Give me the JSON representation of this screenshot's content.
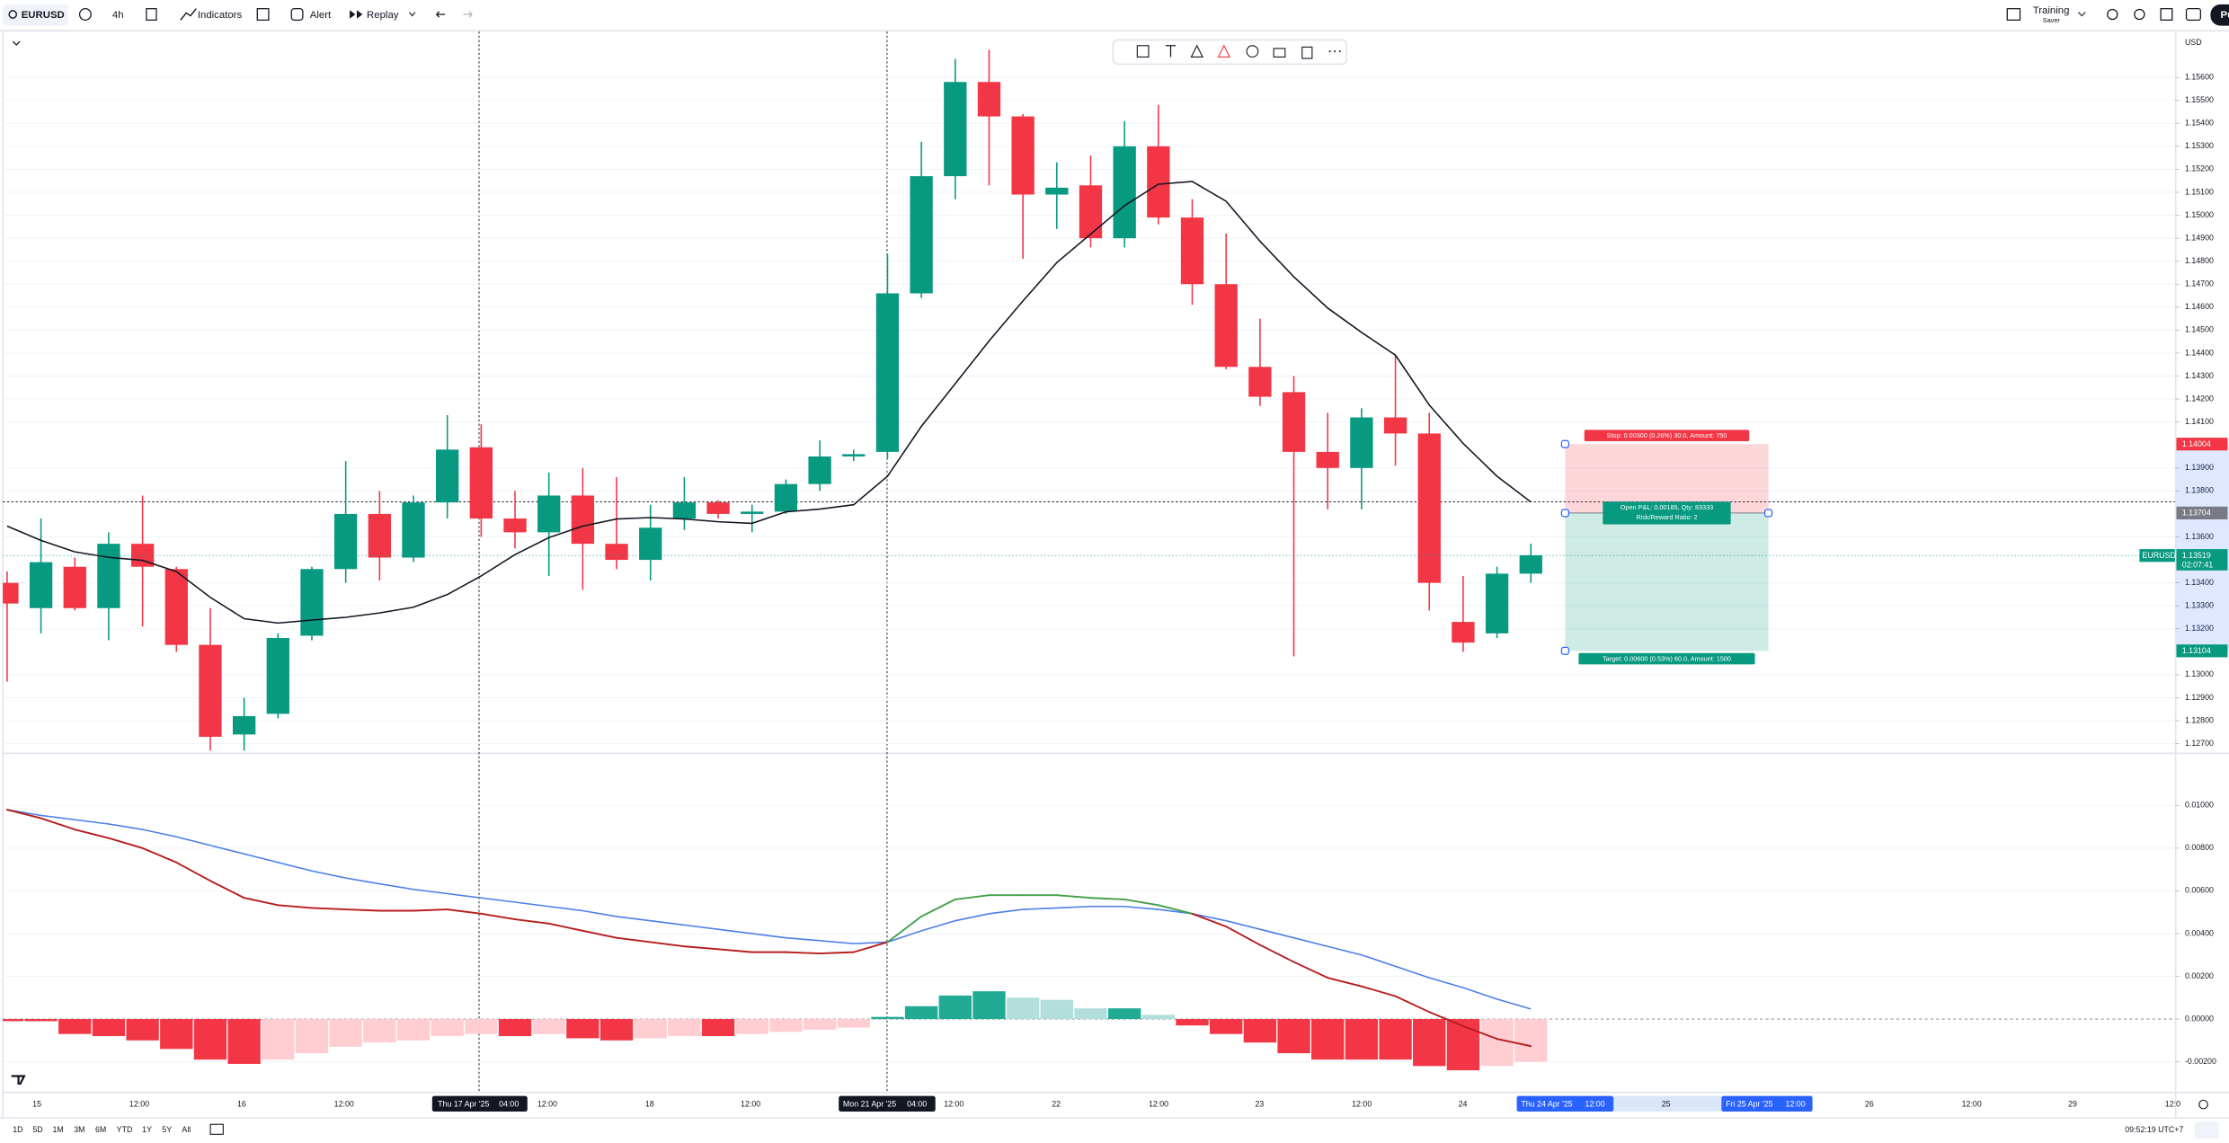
{
  "toolbar": {
    "symbol": "EURUSD",
    "interval": "4h",
    "indicators": "Indicators",
    "alert": "Alert",
    "replay": "Replay",
    "training": "Training",
    "training_sub": "Saver",
    "profile": "Pu"
  },
  "chart_data": [
    {
      "type": "candlestick",
      "currency": "USD",
      "open": [
        1.134,
        1.1329,
        1.1347,
        1.1329,
        1.1357,
        1.1346,
        1.1313,
        1.1274,
        1.1283,
        1.1317,
        1.1346,
        1.137,
        1.1351,
        1.1375,
        1.1399,
        1.1368,
        1.1362,
        1.1378,
        1.1357,
        1.135,
        1.1368,
        1.1375,
        1.137,
        1.1371,
        1.1383,
        1.1395,
        1.1397,
        1.1466,
        1.1517,
        1.1558,
        1.1543,
        1.1509,
        1.1513,
        1.149,
        1.153,
        1.1499,
        1.147,
        1.1434,
        1.1423,
        1.1397,
        1.139,
        1.1412,
        1.1405,
        1.1323,
        1.1318,
        1.1344
      ],
      "high": [
        1.1345,
        1.1368,
        1.1351,
        1.1362,
        1.1378,
        1.1347,
        1.1329,
        1.129,
        1.1318,
        1.1347,
        1.1393,
        1.138,
        1.1378,
        1.1413,
        1.1409,
        1.138,
        1.1388,
        1.139,
        1.1386,
        1.1374,
        1.1386,
        1.1376,
        1.1374,
        1.1385,
        1.1402,
        1.1398,
        1.1483,
        1.1532,
        1.1568,
        1.1572,
        1.1544,
        1.1523,
        1.1526,
        1.1541,
        1.1548,
        1.1507,
        1.1492,
        1.1455,
        1.143,
        1.1414,
        1.1416,
        1.1439,
        1.1414,
        1.1343,
        1.1347,
        1.1357
      ],
      "low": [
        1.1297,
        1.1318,
        1.1328,
        1.1315,
        1.1321,
        1.131,
        1.1267,
        1.1267,
        1.1281,
        1.1315,
        1.134,
        1.1341,
        1.1349,
        1.1368,
        1.136,
        1.1355,
        1.1343,
        1.1337,
        1.1346,
        1.1341,
        1.1363,
        1.1368,
        1.1362,
        1.137,
        1.138,
        1.1393,
        1.1394,
        1.1464,
        1.1507,
        1.1513,
        1.1481,
        1.1494,
        1.1486,
        1.1486,
        1.1496,
        1.1461,
        1.1433,
        1.1417,
        1.1308,
        1.1372,
        1.1372,
        1.1391,
        1.1328,
        1.131,
        1.1316,
        1.134
      ],
      "close": [
        1.1331,
        1.1349,
        1.1329,
        1.1357,
        1.1347,
        1.1313,
        1.1273,
        1.1282,
        1.1316,
        1.1346,
        1.137,
        1.1351,
        1.1375,
        1.1398,
        1.1368,
        1.1362,
        1.1378,
        1.1357,
        1.135,
        1.1364,
        1.1375,
        1.137,
        1.1371,
        1.1383,
        1.1395,
        1.1396,
        1.1466,
        1.1517,
        1.1558,
        1.1543,
        1.1509,
        1.1512,
        1.149,
        1.153,
        1.1499,
        1.147,
        1.1434,
        1.1421,
        1.1397,
        1.139,
        1.1412,
        1.1405,
        1.134,
        1.1314,
        1.1344,
        1.1352
      ],
      "colors": {
        "up": "#089981",
        "down": "#f23645"
      },
      "ma": {
        "color": "#131722",
        "values": [
          1.13647,
          1.13585,
          1.13535,
          1.13511,
          1.13498,
          1.13449,
          1.13337,
          1.13244,
          1.13225,
          1.13238,
          1.1325,
          1.13269,
          1.13294,
          1.13349,
          1.1343,
          1.13523,
          1.13597,
          1.13647,
          1.13678,
          1.13684,
          1.13678,
          1.13666,
          1.13659,
          1.13709,
          1.13721,
          1.1374,
          1.13864,
          1.14081,
          1.14267,
          1.14453,
          1.14627,
          1.14794,
          1.14918,
          1.15042,
          1.15135,
          1.15147,
          1.15061,
          1.14887,
          1.14732,
          1.14596,
          1.1449,
          1.14391,
          1.14174,
          1.14007,
          1.13864,
          1.13752
        ]
      },
      "ylim": [
        1.1267,
        1.158
      ],
      "yticks": [
        {
          "value": 1.156,
          "label": "1.15600"
        },
        {
          "value": 1.155,
          "label": "1.15500"
        },
        {
          "value": 1.154,
          "label": "1.15400"
        },
        {
          "value": 1.153,
          "label": "1.15300"
        },
        {
          "value": 1.152,
          "label": "1.15200"
        },
        {
          "value": 1.151,
          "label": "1.15100"
        },
        {
          "value": 1.15,
          "label": "1.15000"
        },
        {
          "value": 1.149,
          "label": "1.14900"
        },
        {
          "value": 1.148,
          "label": "1.14800"
        },
        {
          "value": 1.147,
          "label": "1.14700"
        },
        {
          "value": 1.146,
          "label": "1.14600"
        },
        {
          "value": 1.145,
          "label": "1.14500"
        },
        {
          "value": 1.144,
          "label": "1.14400"
        },
        {
          "value": 1.143,
          "label": "1.14300"
        },
        {
          "value": 1.142,
          "label": "1.14200"
        },
        {
          "value": 1.141,
          "label": "1.14100"
        },
        {
          "value": 1.139,
          "label": "1.13900"
        },
        {
          "value": 1.138,
          "label": "1.13800"
        },
        {
          "value": 1.136,
          "label": "1.13600"
        },
        {
          "value": 1.134,
          "label": "1.13400"
        },
        {
          "value": 1.133,
          "label": "1.13300"
        },
        {
          "value": 1.132,
          "label": "1.13200"
        },
        {
          "value": 1.13,
          "label": "1.13000"
        },
        {
          "value": 1.129,
          "label": "1.12900"
        },
        {
          "value": 1.128,
          "label": "1.12800"
        },
        {
          "value": 1.127,
          "label": "1.12700"
        }
      ],
      "grid": true,
      "last_price": {
        "symbol": "EURUSD",
        "value": 1.13519,
        "countdown": "02:07:41",
        "color": "#089981"
      },
      "position": {
        "stop": 1.14004,
        "entry": 1.13704,
        "target": 1.13104,
        "stop_label": "Stop: 0.00300 (0.26%) 30.0, Amount: 750",
        "pnl_label": "Open P&L: 0.00185, Qty: 83333",
        "rr_label": "Risk/Reward Ratio: 2",
        "target_label": "Target: 0.00600 (0.53%) 60.0, Amount: 1500"
      }
    },
    {
      "type": "macd",
      "macd": {
        "color_up": "#43a047",
        "color_down": "#b71c1c",
        "values": [
          0.0098,
          0.0094,
          0.00887,
          0.00847,
          0.008,
          0.00733,
          0.00647,
          0.00567,
          0.00533,
          0.0052,
          0.00513,
          0.00507,
          0.00507,
          0.00513,
          0.00493,
          0.00467,
          0.00447,
          0.00413,
          0.0038,
          0.0036,
          0.0034,
          0.00327,
          0.00313,
          0.00313,
          0.00307,
          0.00313,
          0.0036,
          0.0048,
          0.0056,
          0.0058,
          0.0058,
          0.0058,
          0.00567,
          0.0056,
          0.00533,
          0.00493,
          0.00433,
          0.00347,
          0.00267,
          0.00193,
          0.00153,
          0.00107,
          0.00033,
          -0.00033,
          -0.00093,
          -0.00127
        ]
      },
      "signal": {
        "color": "#4a7ee8",
        "values": [
          0.0098,
          0.00953,
          0.00933,
          0.00913,
          0.00887,
          0.00853,
          0.00813,
          0.00773,
          0.00733,
          0.00693,
          0.0066,
          0.00633,
          0.00607,
          0.00587,
          0.00567,
          0.00547,
          0.00527,
          0.00507,
          0.0048,
          0.0046,
          0.0044,
          0.0042,
          0.004,
          0.0038,
          0.00367,
          0.00353,
          0.0036,
          0.00413,
          0.0046,
          0.00493,
          0.00513,
          0.0052,
          0.00527,
          0.00527,
          0.00513,
          0.00493,
          0.0046,
          0.0042,
          0.0038,
          0.0034,
          0.003,
          0.00247,
          0.00193,
          0.00147,
          0.00093,
          0.00047
        ]
      },
      "histogram": {
        "colors": {
          "up_grow": "#22ab94",
          "up_fall": "#b2dfdb",
          "down_fall": "#f23645",
          "down_rise": "#ffcdd2"
        },
        "values": [
          -0.0001,
          -0.0001,
          -0.0007,
          -0.0008,
          -0.001,
          -0.0014,
          -0.0019,
          -0.0021,
          -0.0019,
          -0.0016,
          -0.0013,
          -0.0011,
          -0.001,
          -0.0008,
          -0.0007,
          -0.0008,
          -0.0007,
          -0.0009,
          -0.001,
          -0.0009,
          -0.0008,
          -0.0008,
          -0.0007,
          -0.0006,
          -0.0005,
          -0.0004,
          0.0001,
          0.0006,
          0.0011,
          0.0013,
          0.001,
          0.0009,
          0.0005,
          0.0005,
          0.0002,
          -0.0003,
          -0.0007,
          -0.0011,
          -0.0016,
          -0.0019,
          -0.0019,
          -0.0019,
          -0.0022,
          -0.0024,
          -0.0022,
          -0.002
        ]
      },
      "ylim": [
        -0.0034,
        0.0123
      ],
      "yticks": [
        {
          "value": 0.01,
          "label": "0.01000"
        },
        {
          "value": 0.008,
          "label": "0.00800"
        },
        {
          "value": 0.006,
          "label": "0.00600"
        },
        {
          "value": 0.004,
          "label": "0.00400"
        },
        {
          "value": 0.002,
          "label": "0.00200"
        },
        {
          "value": 0,
          "label": "0.00000"
        },
        {
          "value": -0.002,
          "label": "-0.00200"
        }
      ],
      "grid": true
    }
  ],
  "time_axis": [
    "15",
    "12:00",
    "16",
    "12:00",
    "12:00",
    "18",
    "12:00",
    "12:00",
    "22",
    "12:00",
    "23",
    "12:00",
    "24",
    "25",
    "26",
    "12:00",
    "29",
    "12:0"
  ],
  "time_markers": [
    {
      "date": "Thu 17 Apr '25",
      "time": "04:00"
    },
    {
      "date": "Mon 21 Apr '25",
      "time": "04:00"
    },
    {
      "date": "Thu 24 Apr '25",
      "time": "12:00"
    },
    {
      "date": "Fri 25 Apr '25",
      "time": "12:00"
    }
  ],
  "bottom_bar": {
    "ranges": [
      "1D",
      "5D",
      "1M",
      "3M",
      "6M",
      "YTD",
      "1Y",
      "5Y",
      "All"
    ],
    "clock": "09:52:19 UTC+7"
  }
}
